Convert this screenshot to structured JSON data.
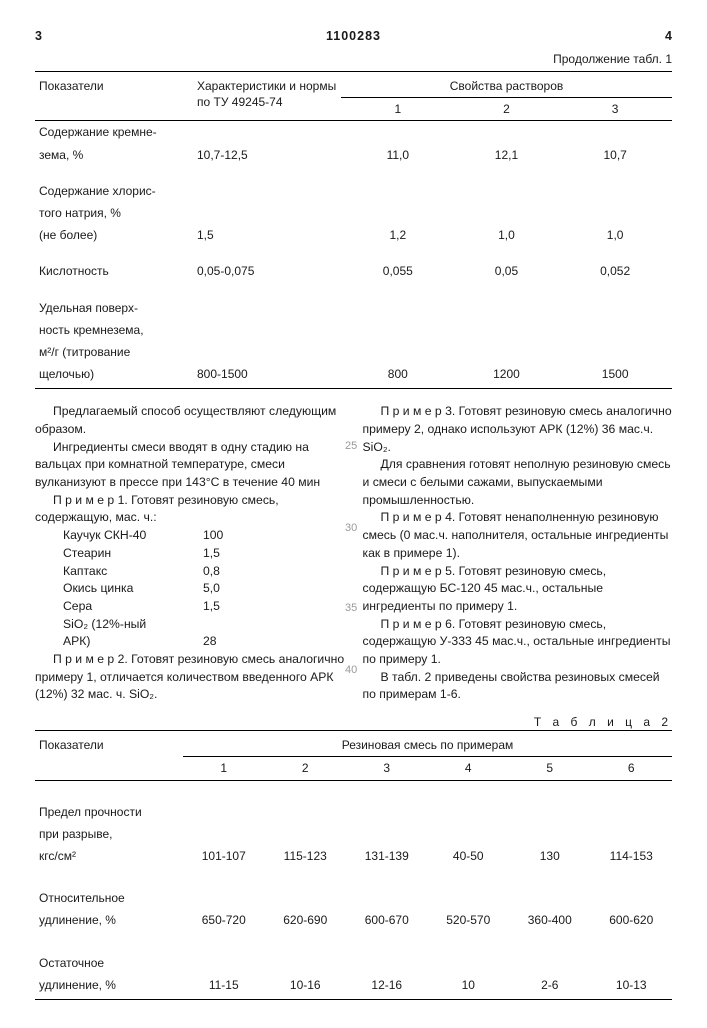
{
  "header": {
    "page_left": "3",
    "doc_no": "1100283",
    "page_right": "4"
  },
  "table1": {
    "continuation": "Продолжение табл. 1",
    "col_param": "Показатели",
    "col_char": "Характеристики и нормы по ТУ 49245-74",
    "col_props": "Свойства растворов",
    "subcols": [
      "1",
      "2",
      "3"
    ],
    "rows": [
      {
        "p": "Содержание кремне-\nзема, %",
        "c": "10,7-12,5",
        "v": [
          "11,0",
          "12,1",
          "10,7"
        ]
      },
      {
        "p": "Содержание хлорис-\nтого натрия, %\n(не более)",
        "c": "1,5",
        "v": [
          "1,2",
          "1,0",
          "1,0"
        ]
      },
      {
        "p": "Кислотность",
        "c": "0,05-0,075",
        "v": [
          "0,055",
          "0,05",
          "0,052"
        ]
      },
      {
        "p": "Удельная поверх-\nность кремнезема,\nм²/г (титрование\nщелочью)",
        "c": "800-1500",
        "v": [
          "800",
          "1200",
          "1500"
        ]
      }
    ]
  },
  "body": {
    "left": {
      "p1": "Предлагаемый способ осуществляют следующим образом.",
      "p2": "Ингредиенты смеси вводят в одну стадию на вальцах при комнатной температуре, смеси вулканизуют в прессе при 143°С в течение 40 мин",
      "ex1_hdr": "П р и м е р  1. Готовят резиновую смесь, содержащую, мас. ч.:",
      "ingredients": [
        [
          "Каучук СКН-40",
          "100"
        ],
        [
          "Стеарин",
          "1,5"
        ],
        [
          "Каптакс",
          "0,8"
        ],
        [
          "Окись цинка",
          "5,0"
        ],
        [
          "Сера",
          "1,5"
        ],
        [
          "SiO₂ (12%-ный",
          ""
        ],
        [
          "АРК)",
          "28"
        ]
      ],
      "ex2": "П р и м е р  2. Готовят резиновую смесь аналогично примеру 1, отличается количеством введенного АРК (12%) 32 мас. ч. SiO₂."
    },
    "right": {
      "ex3": "П р и м е р  3. Готовят резиновую смесь аналогично примеру 2, однако используют АРК (12%) 36 мас.ч. SiO₂.",
      "pC": "Для сравнения готовят неполную резиновую смесь и смеси с белыми сажами, выпускаемыми промышленностью.",
      "ex4": "П р и м е р  4. Готовят ненаполненную резиновую смесь (0 мас.ч. наполнителя, остальные ингредиенты как в примере 1).",
      "ex5": "П р и м е р  5. Готовят резиновую смесь, содержащую БС-120 45 мас.ч., остальные ингредиенты по примеру 1.",
      "ex6": "П р и м е р  6. Готовят резиновую смесь, содержащую У-333 45 мас.ч., остальные ингредиенты по примеру 1.",
      "pT": "В табл. 2 приведены свойства резиновых смесей по примерам 1-6."
    },
    "line_nums": [
      "25",
      "30",
      "35",
      "40"
    ]
  },
  "table2": {
    "caption": "Т а б л и ц а  2",
    "col_param": "Показатели",
    "col_group": "Резиновая смесь  по  примерам",
    "subcols": [
      "1",
      "2",
      "3",
      "4",
      "5",
      "6"
    ],
    "rows": [
      {
        "p": "Предел прочности\nпри разрыве,\nкгс/см²",
        "v": [
          "101-107",
          "115-123",
          "131-139",
          "40-50",
          "130",
          "114-153"
        ]
      },
      {
        "p": "Относительное\nудлинение, %",
        "v": [
          "650-720",
          "620-690",
          "600-670",
          "520-570",
          "360-400",
          "600-620"
        ]
      },
      {
        "p": "Остаточное\nудлинение, %",
        "v": [
          "11-15",
          "10-16",
          "12-16",
          "10",
          "2-6",
          "10-13"
        ]
      }
    ]
  }
}
